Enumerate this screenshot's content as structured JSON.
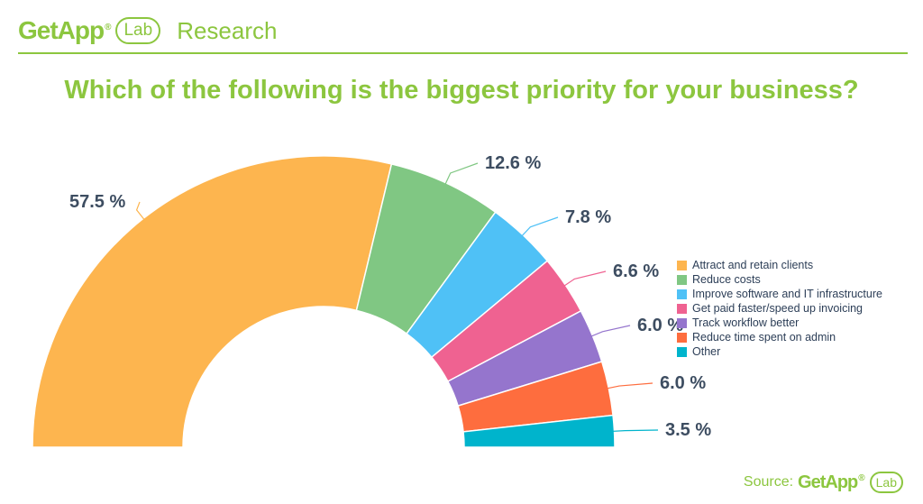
{
  "header": {
    "brand": "GetApp",
    "brand_mark": "®",
    "lab": "Lab",
    "section": "Research"
  },
  "chart_data": {
    "type": "pie",
    "subtype": "half-donut",
    "title": "Which of the following is the biggest priority for your business?",
    "legend_position": "right",
    "value_suffix": " %",
    "series": [
      {
        "name": "Attract and retain clients",
        "value": 57.5,
        "label": "57.5 %",
        "color": "#fdb54f"
      },
      {
        "name": "Reduce costs",
        "value": 12.6,
        "label": "12.6 %",
        "color": "#80c783"
      },
      {
        "name": "Improve software and IT infrastructure",
        "value": 7.8,
        "label": "7.8 %",
        "color": "#4fc1f6"
      },
      {
        "name": "Get paid faster/speed up invoicing",
        "value": 6.6,
        "label": "6.6 %",
        "color": "#ef6291"
      },
      {
        "name": "Track workflow better",
        "value": 6.0,
        "label": "6.0 %",
        "color": "#9575cd"
      },
      {
        "name": "Reduce time spent on admin",
        "value": 6.0,
        "label": "6.0 %",
        "color": "#fe6d3e"
      },
      {
        "name": "Other",
        "value": 3.5,
        "label": "3.5 %",
        "color": "#00b4cc"
      }
    ]
  },
  "footer": {
    "source_label": "Source:",
    "brand": "GetApp",
    "brand_mark": "®",
    "lab": "Lab"
  }
}
